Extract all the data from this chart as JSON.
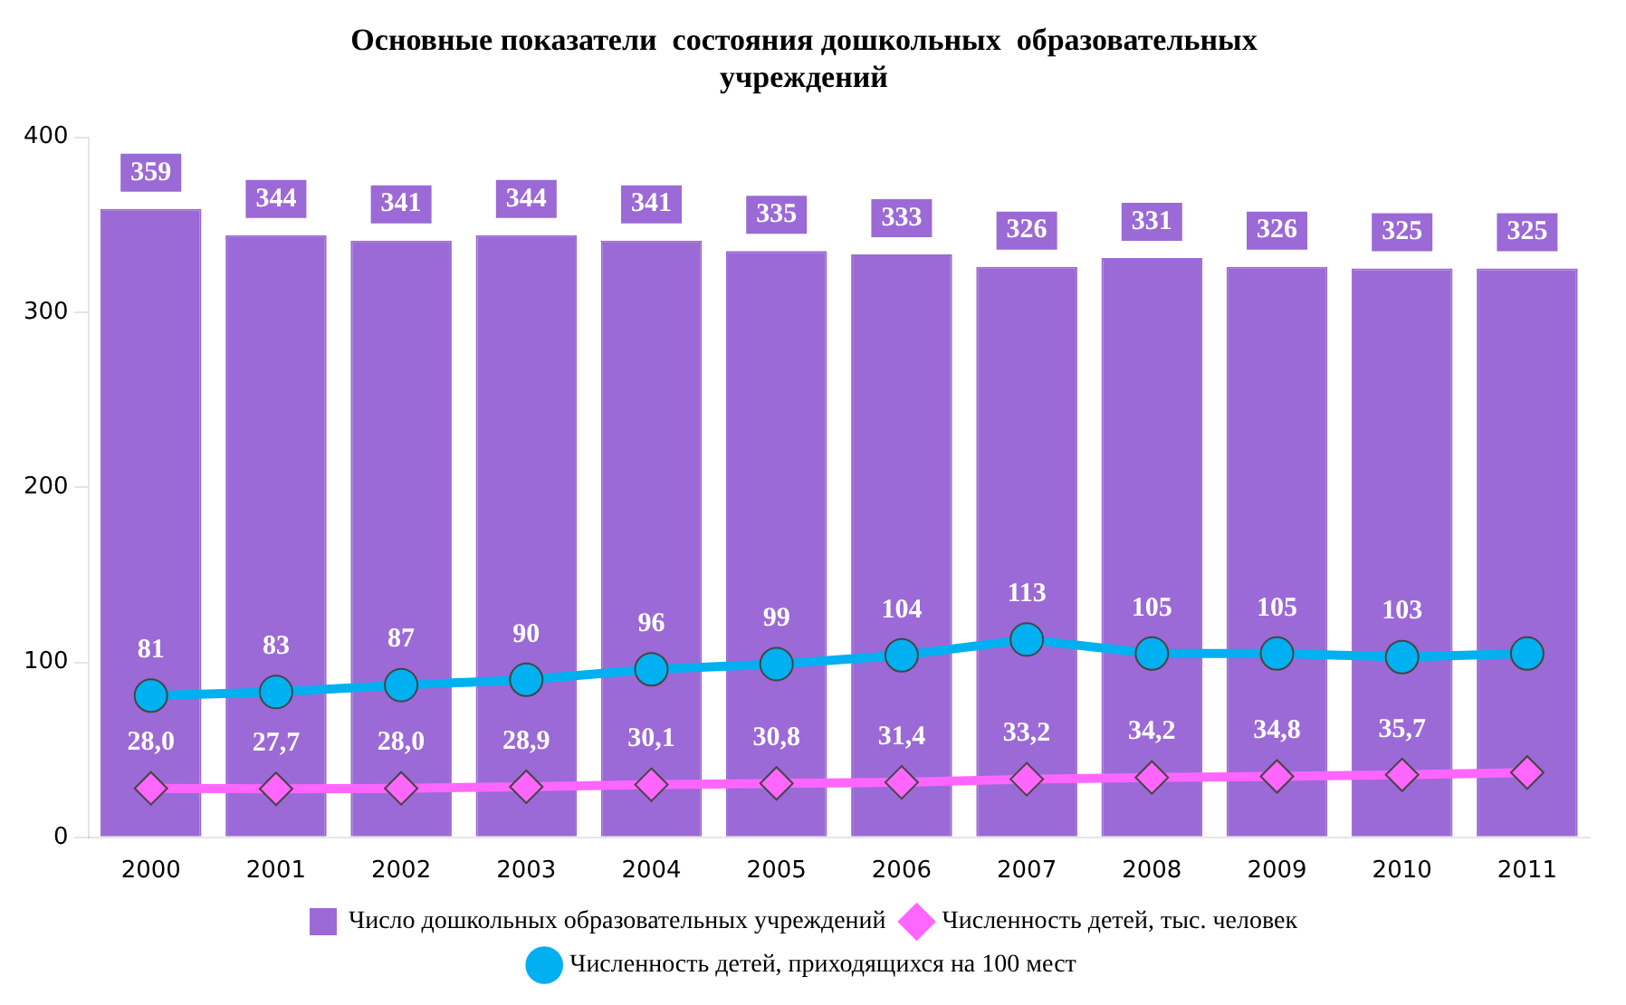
{
  "chart_data": {
    "type": "bar",
    "title": [
      "Основные показатели  состояния дошкольных  образовательных",
      "учреждений"
    ],
    "categories": [
      "2000",
      "2001",
      "2002",
      "2003",
      "2004",
      "2005",
      "2006",
      "2007",
      "2008",
      "2009",
      "2010",
      "2011"
    ],
    "series": [
      {
        "name": "Число дошкольных образовательных учреждений",
        "color": "#9b6ad6",
        "values": [
          359,
          344,
          341,
          344,
          341,
          335,
          333,
          326,
          331,
          326,
          325,
          325
        ],
        "data_labels": true
      },
      {
        "name": "Численность детей, тыс. человек",
        "type": "line",
        "color": "#ff66ff",
        "marker": "diamond",
        "values": [
          28.0,
          27.7,
          28.0,
          28.9,
          30.1,
          30.8,
          31.4,
          33.2,
          34.2,
          34.8,
          35.7,
          37
        ],
        "value_labels": [
          "28,0",
          "27,7",
          "28,0",
          "28,9",
          "30,1",
          "30,8",
          "31,4",
          "33,2",
          "34,2",
          "34,8",
          "35,7",
          null
        ]
      },
      {
        "name": "Численность детей, приходящихся на 100 мест",
        "type": "line",
        "color": "#00b0f0",
        "marker": "circle",
        "values": [
          81,
          83,
          87,
          90,
          96,
          99,
          104,
          113,
          105,
          105,
          103,
          105
        ],
        "value_labels": [
          "81",
          "83",
          "87",
          "90",
          "96",
          "99",
          "104",
          "113",
          "105",
          "105",
          "103",
          null
        ]
      }
    ],
    "ylim": [
      0,
      400
    ],
    "yticks": [
      0,
      100,
      200,
      300,
      400
    ],
    "grid": false,
    "legend": "bottom"
  }
}
